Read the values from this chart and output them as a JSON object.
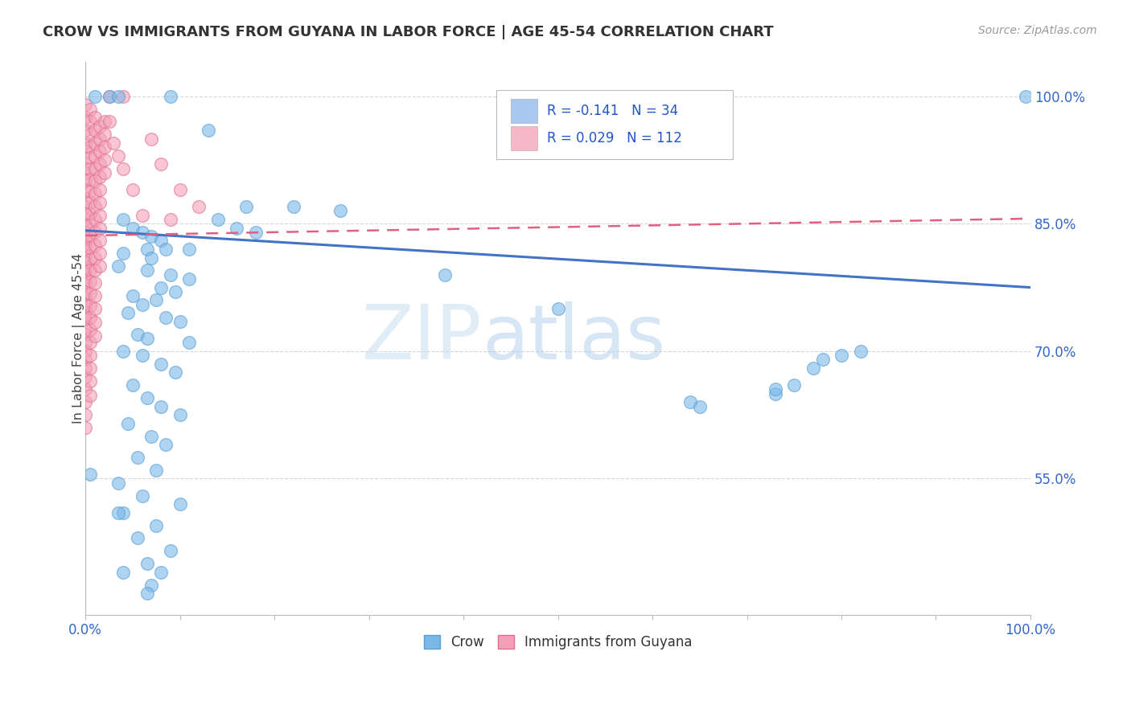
{
  "title": "CROW VS IMMIGRANTS FROM GUYANA IN LABOR FORCE | AGE 45-54 CORRELATION CHART",
  "source": "Source: ZipAtlas.com",
  "ylabel": "In Labor Force | Age 45-54",
  "xlim": [
    0.0,
    1.0
  ],
  "ylim": [
    0.39,
    1.04
  ],
  "yticks": [
    0.55,
    0.7,
    0.85,
    1.0
  ],
  "ytick_labels": [
    "55.0%",
    "70.0%",
    "85.0%",
    "100.0%"
  ],
  "xtick_labels": [
    "0.0%",
    "100.0%"
  ],
  "crow_color": "#7ab8e8",
  "crow_edge_color": "#5a9fd4",
  "guyana_color": "#f4a0b8",
  "guyana_edge_color": "#e07090",
  "crow_line_color": "#4472c4",
  "guyana_line_color": "#e06080",
  "background_color": "#ffffff",
  "grid_color": "#cccccc",
  "watermark_zip": "ZIP",
  "watermark_atlas": "atlas",
  "legend_box_color": "#a8c8f0",
  "legend_box_color2": "#f4b8c8",
  "legend_text_color": "#2255cc",
  "crow_trend": [
    0.0,
    0.842,
    1.0,
    0.775
  ],
  "guyana_trend": [
    0.0,
    0.836,
    1.0,
    0.856
  ],
  "crow_data": [
    [
      0.01,
      1.0
    ],
    [
      0.025,
      1.0
    ],
    [
      0.035,
      1.0
    ],
    [
      0.09,
      1.0
    ],
    [
      0.13,
      0.96
    ],
    [
      0.17,
      0.87
    ],
    [
      0.22,
      0.87
    ],
    [
      0.27,
      0.865
    ],
    [
      0.04,
      0.855
    ],
    [
      0.05,
      0.845
    ],
    [
      0.06,
      0.84
    ],
    [
      0.07,
      0.835
    ],
    [
      0.08,
      0.83
    ],
    [
      0.065,
      0.82
    ],
    [
      0.085,
      0.82
    ],
    [
      0.11,
      0.82
    ],
    [
      0.04,
      0.815
    ],
    [
      0.07,
      0.81
    ],
    [
      0.035,
      0.8
    ],
    [
      0.065,
      0.795
    ],
    [
      0.09,
      0.79
    ],
    [
      0.11,
      0.785
    ],
    [
      0.08,
      0.775
    ],
    [
      0.095,
      0.77
    ],
    [
      0.05,
      0.765
    ],
    [
      0.075,
      0.76
    ],
    [
      0.06,
      0.755
    ],
    [
      0.045,
      0.745
    ],
    [
      0.085,
      0.74
    ],
    [
      0.1,
      0.735
    ],
    [
      0.055,
      0.72
    ],
    [
      0.065,
      0.715
    ],
    [
      0.11,
      0.71
    ],
    [
      0.04,
      0.7
    ],
    [
      0.06,
      0.695
    ],
    [
      0.08,
      0.685
    ],
    [
      0.095,
      0.675
    ],
    [
      0.05,
      0.66
    ],
    [
      0.065,
      0.645
    ],
    [
      0.08,
      0.635
    ],
    [
      0.1,
      0.625
    ],
    [
      0.045,
      0.615
    ],
    [
      0.07,
      0.6
    ],
    [
      0.085,
      0.59
    ],
    [
      0.055,
      0.575
    ],
    [
      0.075,
      0.56
    ],
    [
      0.035,
      0.545
    ],
    [
      0.06,
      0.53
    ],
    [
      0.1,
      0.52
    ],
    [
      0.04,
      0.51
    ],
    [
      0.075,
      0.495
    ],
    [
      0.055,
      0.48
    ],
    [
      0.09,
      0.465
    ],
    [
      0.065,
      0.45
    ],
    [
      0.04,
      0.44
    ],
    [
      0.07,
      0.425
    ],
    [
      0.065,
      0.415
    ],
    [
      0.14,
      0.855
    ],
    [
      0.16,
      0.845
    ],
    [
      0.18,
      0.84
    ],
    [
      0.005,
      0.555
    ],
    [
      0.035,
      0.51
    ],
    [
      0.08,
      0.44
    ],
    [
      0.38,
      0.79
    ],
    [
      0.5,
      0.75
    ],
    [
      0.64,
      0.64
    ],
    [
      0.65,
      0.635
    ],
    [
      0.73,
      0.65
    ],
    [
      0.73,
      0.655
    ],
    [
      0.75,
      0.66
    ],
    [
      0.77,
      0.68
    ],
    [
      0.78,
      0.69
    ],
    [
      0.8,
      0.695
    ],
    [
      0.82,
      0.7
    ],
    [
      0.995,
      1.0
    ]
  ],
  "guyana_data": [
    [
      0.0,
      0.99
    ],
    [
      0.0,
      0.975
    ],
    [
      0.0,
      0.96
    ],
    [
      0.0,
      0.945
    ],
    [
      0.0,
      0.935
    ],
    [
      0.0,
      0.92
    ],
    [
      0.0,
      0.91
    ],
    [
      0.0,
      0.9
    ],
    [
      0.0,
      0.89
    ],
    [
      0.0,
      0.88
    ],
    [
      0.0,
      0.87
    ],
    [
      0.0,
      0.862
    ],
    [
      0.0,
      0.855
    ],
    [
      0.0,
      0.848
    ],
    [
      0.0,
      0.84
    ],
    [
      0.0,
      0.832
    ],
    [
      0.0,
      0.825
    ],
    [
      0.0,
      0.818
    ],
    [
      0.0,
      0.812
    ],
    [
      0.0,
      0.805
    ],
    [
      0.0,
      0.798
    ],
    [
      0.0,
      0.792
    ],
    [
      0.0,
      0.785
    ],
    [
      0.0,
      0.778
    ],
    [
      0.0,
      0.77
    ],
    [
      0.0,
      0.762
    ],
    [
      0.0,
      0.754
    ],
    [
      0.0,
      0.746
    ],
    [
      0.0,
      0.738
    ],
    [
      0.0,
      0.729
    ],
    [
      0.0,
      0.72
    ],
    [
      0.0,
      0.71
    ],
    [
      0.0,
      0.7
    ],
    [
      0.0,
      0.69
    ],
    [
      0.0,
      0.68
    ],
    [
      0.0,
      0.67
    ],
    [
      0.0,
      0.655
    ],
    [
      0.0,
      0.64
    ],
    [
      0.0,
      0.625
    ],
    [
      0.0,
      0.61
    ],
    [
      0.005,
      0.985
    ],
    [
      0.005,
      0.97
    ],
    [
      0.005,
      0.955
    ],
    [
      0.005,
      0.94
    ],
    [
      0.005,
      0.928
    ],
    [
      0.005,
      0.915
    ],
    [
      0.005,
      0.902
    ],
    [
      0.005,
      0.888
    ],
    [
      0.005,
      0.875
    ],
    [
      0.005,
      0.862
    ],
    [
      0.005,
      0.848
    ],
    [
      0.005,
      0.835
    ],
    [
      0.005,
      0.822
    ],
    [
      0.005,
      0.808
    ],
    [
      0.005,
      0.795
    ],
    [
      0.005,
      0.782
    ],
    [
      0.005,
      0.768
    ],
    [
      0.005,
      0.754
    ],
    [
      0.005,
      0.74
    ],
    [
      0.005,
      0.725
    ],
    [
      0.005,
      0.71
    ],
    [
      0.005,
      0.695
    ],
    [
      0.005,
      0.68
    ],
    [
      0.005,
      0.665
    ],
    [
      0.005,
      0.648
    ],
    [
      0.01,
      0.975
    ],
    [
      0.01,
      0.96
    ],
    [
      0.01,
      0.945
    ],
    [
      0.01,
      0.93
    ],
    [
      0.01,
      0.915
    ],
    [
      0.01,
      0.9
    ],
    [
      0.01,
      0.885
    ],
    [
      0.01,
      0.87
    ],
    [
      0.01,
      0.855
    ],
    [
      0.01,
      0.84
    ],
    [
      0.01,
      0.825
    ],
    [
      0.01,
      0.81
    ],
    [
      0.01,
      0.795
    ],
    [
      0.01,
      0.78
    ],
    [
      0.01,
      0.765
    ],
    [
      0.01,
      0.75
    ],
    [
      0.01,
      0.734
    ],
    [
      0.01,
      0.718
    ],
    [
      0.015,
      0.965
    ],
    [
      0.015,
      0.95
    ],
    [
      0.015,
      0.935
    ],
    [
      0.015,
      0.92
    ],
    [
      0.015,
      0.905
    ],
    [
      0.015,
      0.89
    ],
    [
      0.015,
      0.875
    ],
    [
      0.015,
      0.86
    ],
    [
      0.015,
      0.845
    ],
    [
      0.015,
      0.83
    ],
    [
      0.015,
      0.815
    ],
    [
      0.015,
      0.8
    ],
    [
      0.02,
      0.97
    ],
    [
      0.02,
      0.955
    ],
    [
      0.02,
      0.94
    ],
    [
      0.02,
      0.925
    ],
    [
      0.02,
      0.91
    ],
    [
      0.025,
      0.97
    ],
    [
      0.025,
      1.0
    ],
    [
      0.03,
      0.945
    ],
    [
      0.035,
      0.93
    ],
    [
      0.04,
      1.0
    ],
    [
      0.04,
      0.915
    ],
    [
      0.05,
      0.89
    ],
    [
      0.06,
      0.86
    ],
    [
      0.07,
      0.95
    ],
    [
      0.08,
      0.92
    ],
    [
      0.09,
      0.855
    ],
    [
      0.1,
      0.89
    ],
    [
      0.12,
      0.87
    ]
  ]
}
